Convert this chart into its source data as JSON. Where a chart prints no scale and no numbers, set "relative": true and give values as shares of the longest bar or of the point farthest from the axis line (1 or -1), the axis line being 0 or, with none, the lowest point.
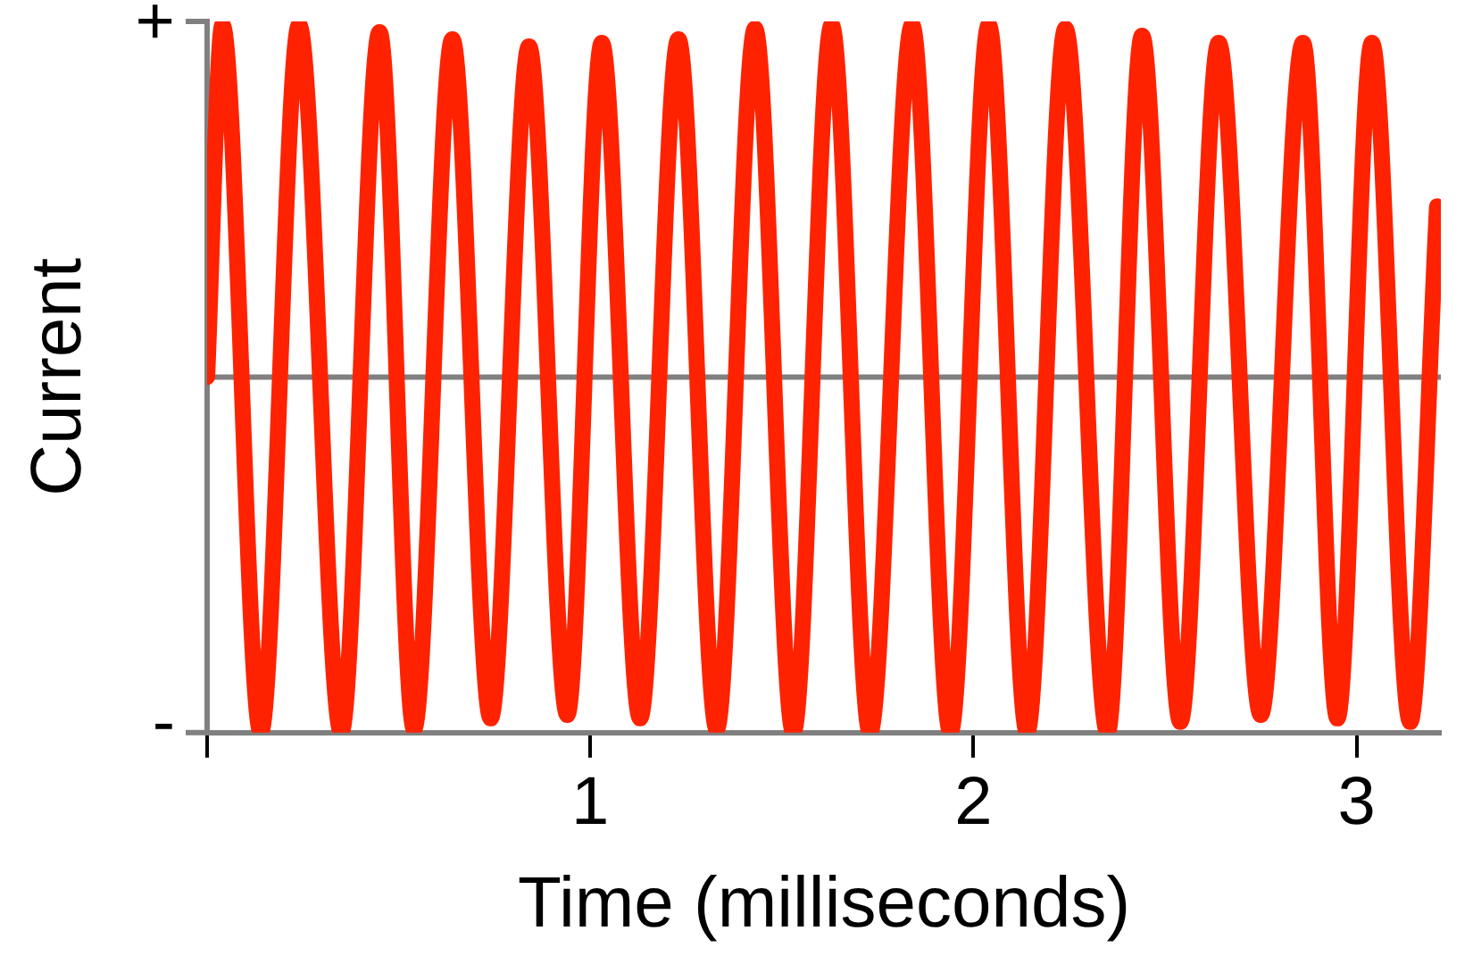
{
  "chart_data": {
    "type": "line",
    "xlabel": "Time (milliseconds)",
    "ylabel": "Current",
    "relative": true,
    "annotations": [
      "+",
      "-"
    ],
    "xlim": [
      0,
      3.22
    ],
    "xticks": [
      {
        "value": 0,
        "label": null
      },
      1,
      2,
      3
    ],
    "grid": false,
    "legend": false,
    "marker": "none",
    "line_style": "solid",
    "series": [
      {
        "color": "#ff2200",
        "x": [
          0,
          0.04,
          0.14,
          0.24,
          0.35,
          0.45,
          0.54,
          0.64,
          0.74,
          0.84,
          0.94,
          1.03,
          1.13,
          1.23,
          1.33,
          1.43,
          1.53,
          1.63,
          1.73,
          1.84,
          1.94,
          2.04,
          2.14,
          2.24,
          2.35,
          2.44,
          2.54,
          2.64,
          2.75,
          2.86,
          2.95,
          3.04,
          3.14,
          3.21
        ],
        "values": [
          0,
          0.99,
          -1,
          0.99,
          -1,
          0.97,
          -0.99,
          0.95,
          -0.96,
          0.93,
          -0.95,
          0.94,
          -0.96,
          0.95,
          -0.99,
          0.98,
          -1,
          0.99,
          -1,
          0.99,
          -1,
          0.99,
          -1,
          0.98,
          -1,
          0.96,
          -0.97,
          0.94,
          -0.95,
          0.94,
          -0.96,
          0.94,
          -0.97,
          0.48
        ]
      }
    ]
  }
}
